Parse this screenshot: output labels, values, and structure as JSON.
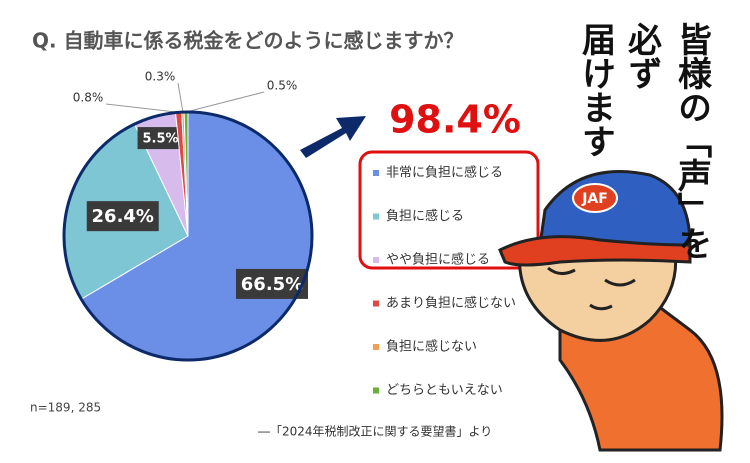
{
  "chart_data": {
    "type": "pie",
    "title": "Q. 自動車に係る税金をどのように感じますか？",
    "categories": [
      "非常に負担に感じる",
      "負担に感じる",
      "やや負担に感じる",
      "あまり負担に感じない",
      "負担に感じない",
      "どちらともいえない"
    ],
    "values": [
      66.5,
      26.4,
      5.5,
      0.8,
      0.3,
      0.5
    ],
    "value_labels": [
      "66.5%",
      "26.4%",
      "5.5%",
      "0.8%",
      "0.3%",
      "0.5%"
    ],
    "colors": [
      "#6b8fe6",
      "#7fc6d4",
      "#d6bbec",
      "#e04848",
      "#f0a050",
      "#6aae3c"
    ],
    "legend": "right",
    "annotations": {
      "total": "98.4%",
      "sample": "n=189, 285",
      "source": "―「2024年税制改正に関する要望書」より"
    },
    "illustration": {
      "message": "皆様の「声」を",
      "line2": "必ず",
      "line3": "届けます",
      "cap": "JAF"
    }
  }
}
